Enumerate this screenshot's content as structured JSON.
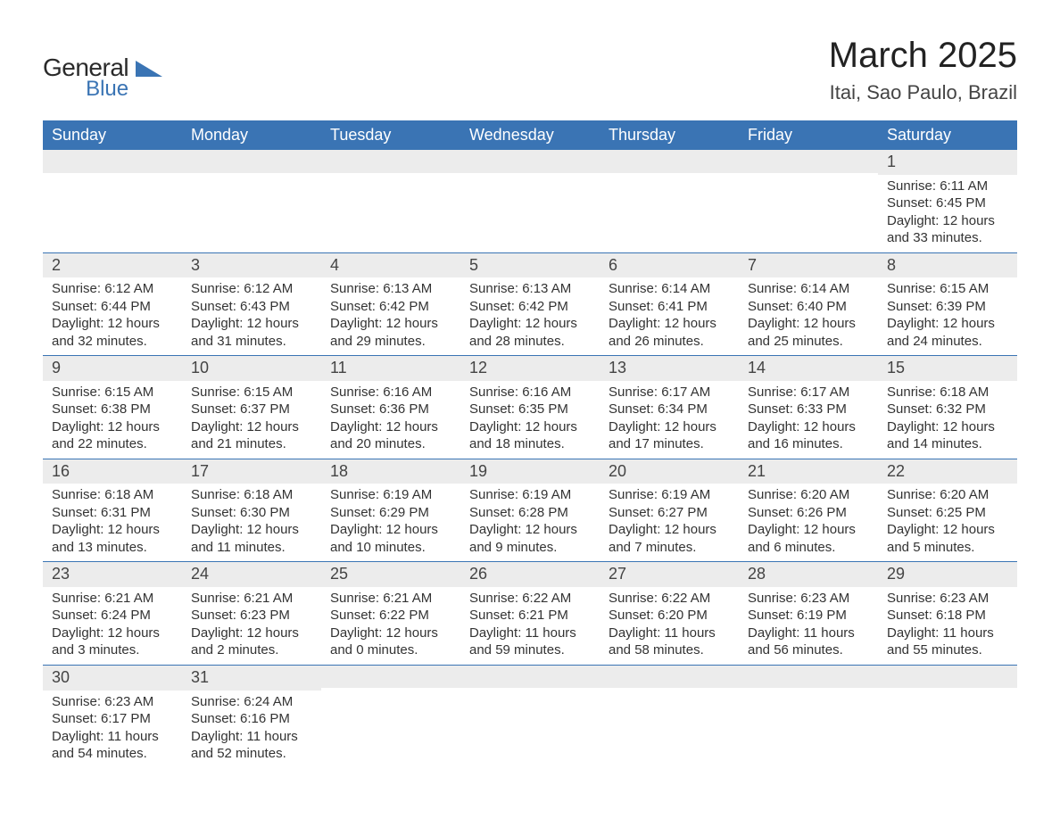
{
  "logo": {
    "word1": "General",
    "word2": "Blue",
    "text_color": "#2a2a2a",
    "accent_color": "#3a74b4"
  },
  "header": {
    "title": "March 2025",
    "location": "Itai, Sao Paulo, Brazil"
  },
  "calendar": {
    "header_bg": "#3a74b4",
    "header_text_color": "#ffffff",
    "band_bg": "#ececec",
    "band_border": "#3a74b4",
    "text_color": "#333333",
    "font_size_header": 18,
    "font_size_daynum": 18,
    "font_size_body": 15,
    "columns": [
      "Sunday",
      "Monday",
      "Tuesday",
      "Wednesday",
      "Thursday",
      "Friday",
      "Saturday"
    ],
    "weeks": [
      [
        null,
        null,
        null,
        null,
        null,
        null,
        {
          "day": "1",
          "sunrise": "6:11 AM",
          "sunset": "6:45 PM",
          "daylight": "12 hours and 33 minutes."
        }
      ],
      [
        {
          "day": "2",
          "sunrise": "6:12 AM",
          "sunset": "6:44 PM",
          "daylight": "12 hours and 32 minutes."
        },
        {
          "day": "3",
          "sunrise": "6:12 AM",
          "sunset": "6:43 PM",
          "daylight": "12 hours and 31 minutes."
        },
        {
          "day": "4",
          "sunrise": "6:13 AM",
          "sunset": "6:42 PM",
          "daylight": "12 hours and 29 minutes."
        },
        {
          "day": "5",
          "sunrise": "6:13 AM",
          "sunset": "6:42 PM",
          "daylight": "12 hours and 28 minutes."
        },
        {
          "day": "6",
          "sunrise": "6:14 AM",
          "sunset": "6:41 PM",
          "daylight": "12 hours and 26 minutes."
        },
        {
          "day": "7",
          "sunrise": "6:14 AM",
          "sunset": "6:40 PM",
          "daylight": "12 hours and 25 minutes."
        },
        {
          "day": "8",
          "sunrise": "6:15 AM",
          "sunset": "6:39 PM",
          "daylight": "12 hours and 24 minutes."
        }
      ],
      [
        {
          "day": "9",
          "sunrise": "6:15 AM",
          "sunset": "6:38 PM",
          "daylight": "12 hours and 22 minutes."
        },
        {
          "day": "10",
          "sunrise": "6:15 AM",
          "sunset": "6:37 PM",
          "daylight": "12 hours and 21 minutes."
        },
        {
          "day": "11",
          "sunrise": "6:16 AM",
          "sunset": "6:36 PM",
          "daylight": "12 hours and 20 minutes."
        },
        {
          "day": "12",
          "sunrise": "6:16 AM",
          "sunset": "6:35 PM",
          "daylight": "12 hours and 18 minutes."
        },
        {
          "day": "13",
          "sunrise": "6:17 AM",
          "sunset": "6:34 PM",
          "daylight": "12 hours and 17 minutes."
        },
        {
          "day": "14",
          "sunrise": "6:17 AM",
          "sunset": "6:33 PM",
          "daylight": "12 hours and 16 minutes."
        },
        {
          "day": "15",
          "sunrise": "6:18 AM",
          "sunset": "6:32 PM",
          "daylight": "12 hours and 14 minutes."
        }
      ],
      [
        {
          "day": "16",
          "sunrise": "6:18 AM",
          "sunset": "6:31 PM",
          "daylight": "12 hours and 13 minutes."
        },
        {
          "day": "17",
          "sunrise": "6:18 AM",
          "sunset": "6:30 PM",
          "daylight": "12 hours and 11 minutes."
        },
        {
          "day": "18",
          "sunrise": "6:19 AM",
          "sunset": "6:29 PM",
          "daylight": "12 hours and 10 minutes."
        },
        {
          "day": "19",
          "sunrise": "6:19 AM",
          "sunset": "6:28 PM",
          "daylight": "12 hours and 9 minutes."
        },
        {
          "day": "20",
          "sunrise": "6:19 AM",
          "sunset": "6:27 PM",
          "daylight": "12 hours and 7 minutes."
        },
        {
          "day": "21",
          "sunrise": "6:20 AM",
          "sunset": "6:26 PM",
          "daylight": "12 hours and 6 minutes."
        },
        {
          "day": "22",
          "sunrise": "6:20 AM",
          "sunset": "6:25 PM",
          "daylight": "12 hours and 5 minutes."
        }
      ],
      [
        {
          "day": "23",
          "sunrise": "6:21 AM",
          "sunset": "6:24 PM",
          "daylight": "12 hours and 3 minutes."
        },
        {
          "day": "24",
          "sunrise": "6:21 AM",
          "sunset": "6:23 PM",
          "daylight": "12 hours and 2 minutes."
        },
        {
          "day": "25",
          "sunrise": "6:21 AM",
          "sunset": "6:22 PM",
          "daylight": "12 hours and 0 minutes."
        },
        {
          "day": "26",
          "sunrise": "6:22 AM",
          "sunset": "6:21 PM",
          "daylight": "11 hours and 59 minutes."
        },
        {
          "day": "27",
          "sunrise": "6:22 AM",
          "sunset": "6:20 PM",
          "daylight": "11 hours and 58 minutes."
        },
        {
          "day": "28",
          "sunrise": "6:23 AM",
          "sunset": "6:19 PM",
          "daylight": "11 hours and 56 minutes."
        },
        {
          "day": "29",
          "sunrise": "6:23 AM",
          "sunset": "6:18 PM",
          "daylight": "11 hours and 55 minutes."
        }
      ],
      [
        {
          "day": "30",
          "sunrise": "6:23 AM",
          "sunset": "6:17 PM",
          "daylight": "11 hours and 54 minutes."
        },
        {
          "day": "31",
          "sunrise": "6:24 AM",
          "sunset": "6:16 PM",
          "daylight": "11 hours and 52 minutes."
        },
        null,
        null,
        null,
        null,
        null
      ]
    ],
    "labels": {
      "sunrise_prefix": "Sunrise: ",
      "sunset_prefix": "Sunset: ",
      "daylight_prefix": "Daylight: "
    }
  }
}
